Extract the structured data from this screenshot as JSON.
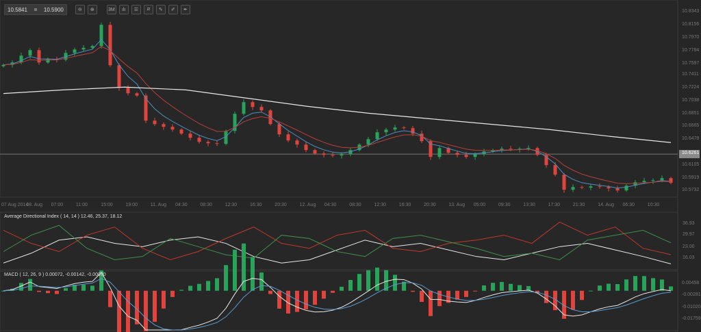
{
  "toolbar": {
    "bid": "10.5841",
    "ask": "10.5900",
    "buttons": [
      {
        "name": "zoom-out-icon",
        "glyph": "⊖"
      },
      {
        "name": "zoom-in-icon",
        "glyph": "⊕"
      },
      {
        "name": "timeframe-button",
        "glyph": "3M"
      },
      {
        "name": "candles-icon",
        "glyph": "ılı"
      },
      {
        "name": "indicators-icon",
        "glyph": "☰"
      },
      {
        "name": "draw-tools-icon",
        "glyph": "⧄"
      },
      {
        "name": "annotate-icon",
        "glyph": "✎"
      },
      {
        "name": "edit-icon",
        "glyph": "✐"
      },
      {
        "name": "pen-icon",
        "glyph": "✒"
      }
    ]
  },
  "colors": {
    "up": "#27a35a",
    "down": "#e0443c",
    "ema_fast": "#4d8fc0",
    "ema_slow": "#b8403a",
    "ma_long": "#e8e8e8",
    "adx": "#e8e8e8",
    "plus_di": "#3f8f4c",
    "minus_di": "#c0392b",
    "macd": "#e8e8e8",
    "signal": "#5a9bd0",
    "background": "#262626"
  },
  "chart_data": [
    {
      "type": "candlestick",
      "current_price": "10.6261",
      "y_ticks": [
        "10.8343",
        "10.8156",
        "10.7970",
        "10.7784",
        "10.7597",
        "10.7411",
        "10.7224",
        "10.7038",
        "10.6851",
        "10.6665",
        "10.6478",
        "10.6105",
        "10.5919",
        "10.5732"
      ],
      "ylim": [
        10.5732,
        10.8343
      ],
      "x_ticks": [
        "07 Aug 2014",
        "08. Aug",
        "07:00",
        "11:00",
        "15:00",
        "19:00",
        "11. Aug",
        "04:30",
        "08:30",
        "12:30",
        "16:30",
        "20:30",
        "12. Aug",
        "04:30",
        "08:30",
        "12:30",
        "16:30",
        "20:30",
        "13. Aug",
        "05:00",
        "09:30",
        "13:30",
        "17:30",
        "21:30",
        "14. Aug",
        "06:30",
        "10:30"
      ],
      "close": [
        10.7565,
        10.76,
        10.77,
        10.778,
        10.76,
        10.765,
        10.764,
        10.774,
        10.779,
        10.7815,
        10.784,
        10.815,
        10.756,
        10.723,
        10.715,
        10.7117,
        10.675,
        10.67,
        10.666,
        10.662,
        10.656,
        10.65,
        10.644,
        10.642,
        10.641,
        10.66,
        10.685,
        10.702,
        10.695,
        10.69,
        10.67,
        10.655,
        10.646,
        10.64,
        10.632,
        10.627,
        10.625,
        10.624,
        10.626,
        10.632,
        10.64,
        10.648,
        10.658,
        10.662,
        10.665,
        10.664,
        10.656,
        10.645,
        10.622,
        10.635,
        10.628,
        10.625,
        10.622,
        10.626,
        10.63,
        10.632,
        10.634,
        10.633,
        10.634,
        10.635,
        10.625,
        10.61,
        10.596,
        10.574,
        10.578,
        10.577,
        10.579,
        10.578,
        10.576,
        10.573,
        10.58,
        10.585,
        10.587,
        10.588,
        10.591,
        10.5841
      ],
      "ma_long": [
        10.7146,
        10.72,
        10.724,
        10.72,
        10.708,
        10.696,
        10.686,
        10.678,
        10.67,
        10.662,
        10.652,
        10.643
      ]
    },
    {
      "type": "line",
      "title": "Average Directional Index ( 14, 14 ) 12.46, 25.37, 18.12",
      "y_ticks": [
        "36.93",
        "29.97",
        "23.00",
        "16.03"
      ],
      "ylim": [
        10,
        40
      ],
      "series": [
        {
          "key": "adx",
          "values": [
            13,
            19,
            27,
            29,
            25,
            23,
            27,
            29,
            25,
            17,
            13,
            15,
            21,
            27,
            23,
            25,
            21,
            17,
            15,
            19,
            23,
            25,
            21,
            17,
            12.46
          ]
        },
        {
          "key": "minus_di",
          "values": [
            33,
            25,
            20,
            30,
            35,
            22,
            15,
            20,
            28,
            35,
            25,
            22,
            30,
            33,
            22,
            20,
            25,
            27,
            30,
            25,
            38,
            30,
            35,
            22,
            18.12
          ]
        },
        {
          "key": "plus_di",
          "values": [
            20,
            30,
            36,
            22,
            15,
            17,
            28,
            23,
            18,
            16,
            30,
            28,
            20,
            17,
            28,
            30,
            26,
            22,
            17,
            19,
            15,
            27,
            30,
            33,
            25.37
          ]
        }
      ]
    },
    {
      "type": "bar+line",
      "title": "MACD ( 12, 26, 9 ) 0.00072, -0.00142, -0.00070",
      "y_ticks": [
        "0.00458",
        "-0.00281",
        "-0.01020",
        "-0.01759"
      ],
      "ylim": [
        -0.0215,
        0.0075
      ]
    }
  ]
}
